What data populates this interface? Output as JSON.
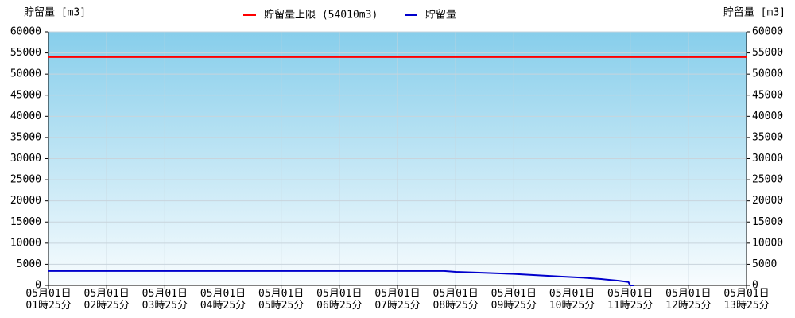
{
  "chart_data": {
    "type": "line",
    "y_label": "貯留量 [m3]",
    "y2_label": "貯留量 [m3]",
    "xlim": [
      0,
      12
    ],
    "xticks": [
      {
        "value": 0,
        "label": "05月01日\n01時25分"
      },
      {
        "value": 1,
        "label": "05月01日\n02時25分"
      },
      {
        "value": 2,
        "label": "05月01日\n03時25分"
      },
      {
        "value": 3,
        "label": "05月01日\n04時25分"
      },
      {
        "value": 4,
        "label": "05月01日\n05時25分"
      },
      {
        "value": 5,
        "label": "05月01日\n06時25分"
      },
      {
        "value": 6,
        "label": "05月01日\n07時25分"
      },
      {
        "value": 7,
        "label": "05月01日\n08時25分"
      },
      {
        "value": 8,
        "label": "05月01日\n09時25分"
      },
      {
        "value": 9,
        "label": "05月01日\n10時25分"
      },
      {
        "value": 10,
        "label": "05月01日\n11時25分"
      },
      {
        "value": 11,
        "label": "05月01日\n12時25分"
      },
      {
        "value": 12,
        "label": "05月01日\n13時25分"
      }
    ],
    "ylim": [
      0,
      60000
    ],
    "yticks": [
      0,
      5000,
      10000,
      15000,
      20000,
      25000,
      30000,
      35000,
      40000,
      45000,
      50000,
      55000,
      60000
    ],
    "y2lim": [
      0,
      60000
    ],
    "y2ticks": [
      0,
      5000,
      10000,
      15000,
      20000,
      25000,
      30000,
      35000,
      40000,
      45000,
      50000,
      55000,
      60000
    ],
    "grid": true,
    "series": [
      {
        "name": "貯留量上限 (54010m3)",
        "color": "#ff0000",
        "x": [
          0,
          12
        ],
        "values": [
          54010,
          54010
        ]
      },
      {
        "name": "貯留量",
        "color": "#0000cc",
        "x": [
          0,
          6.8,
          7.0,
          7.4,
          8.0,
          8.4,
          8.8,
          9.2,
          9.5,
          9.8,
          9.97,
          10.0,
          10.07
        ],
        "values": [
          3400,
          3400,
          3200,
          3000,
          2700,
          2400,
          2100,
          1800,
          1500,
          1100,
          800,
          0,
          0
        ]
      }
    ]
  }
}
